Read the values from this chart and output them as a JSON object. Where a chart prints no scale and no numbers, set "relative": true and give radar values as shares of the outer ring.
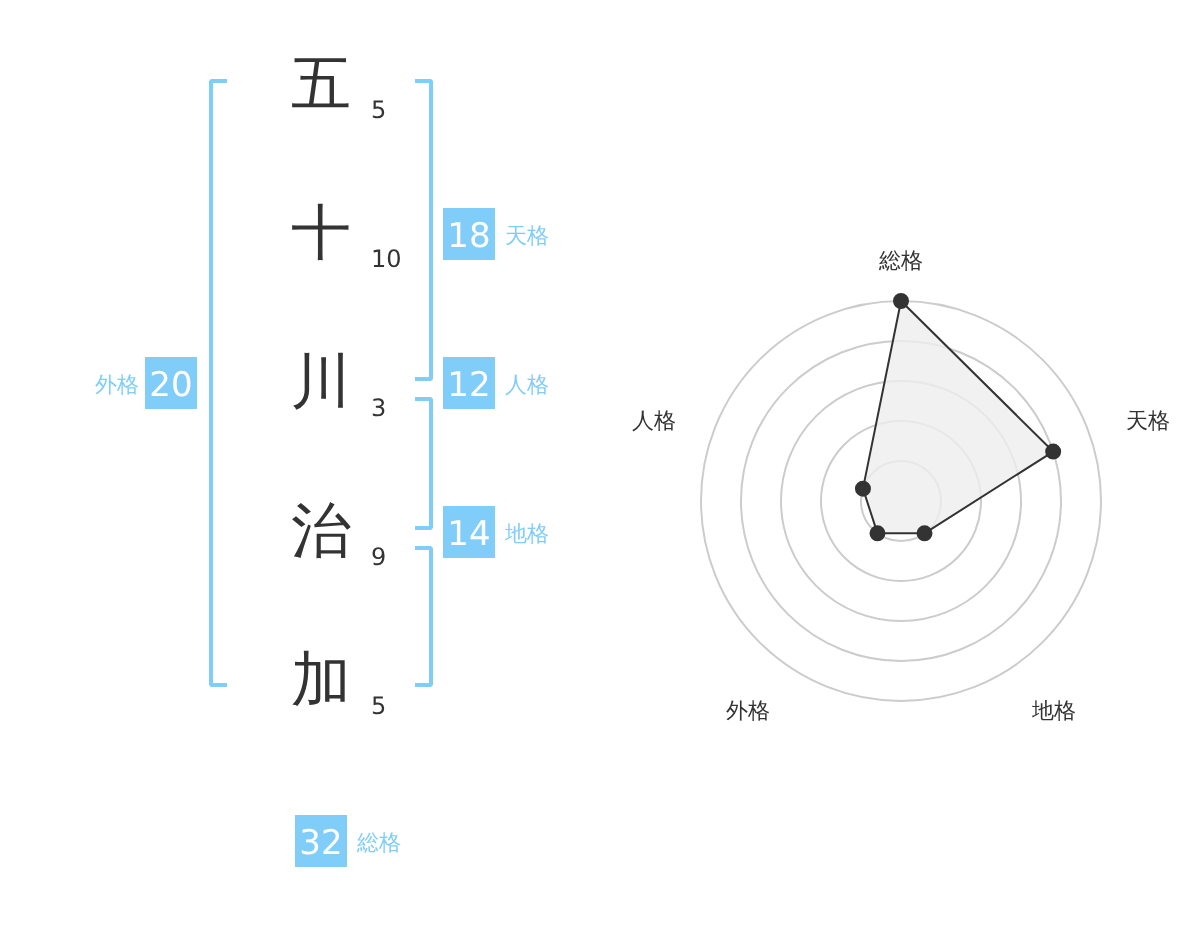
{
  "chart_data": [
    {
      "type": "other",
      "categories": [
        "五",
        "十",
        "川",
        "治",
        "加"
      ],
      "values": [
        5,
        10,
        3,
        9,
        5
      ],
      "data_labels": true,
      "color": "#80cdfa",
      "series": [
        {
          "name": "天格",
          "values": [
            null,
            18,
            null,
            null,
            null
          ]
        },
        {
          "name": "人格",
          "values": [
            null,
            null,
            12,
            null,
            null
          ]
        },
        {
          "name": "地格",
          "values": [
            null,
            null,
            null,
            14,
            null
          ]
        },
        {
          "name": "外格",
          "values": [
            null,
            null,
            20,
            null,
            null
          ]
        }
      ]
    },
    {
      "type": "other",
      "categories": [
        "総格"
      ],
      "values": [
        32
      ],
      "data_labels": true,
      "color": "#80cdfa"
    },
    {
      "type": "radar",
      "categories": [
        "総格",
        "天格",
        "地格",
        "外格",
        "人格"
      ],
      "relative": true,
      "grid": true,
      "marker": "circle",
      "series": [
        {
          "color": "#333333",
          "values": [
            1.0,
            0.8,
            0.2,
            0.2,
            0.2
          ]
        }
      ]
    }
  ]
}
